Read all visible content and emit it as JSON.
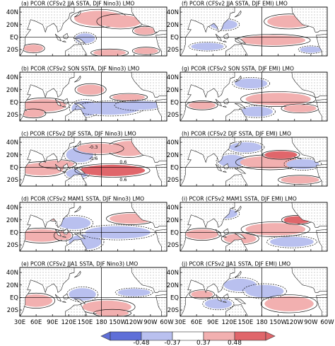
{
  "chart_data": [
    {
      "type": "heatmap",
      "id": "a",
      "title": "(a) PCOR (CFSv2 JJA SSTA, DJF Nino3) LMO"
    },
    {
      "type": "heatmap",
      "id": "b",
      "title": "(b) PCOR (CFSv2 SON SSTA, DJF Nino3) LMO"
    },
    {
      "type": "heatmap",
      "id": "c",
      "title": "(c) PCOR (CFSv2 DJF SSTA, DJF Nino3) LMO",
      "annotations": [
        "-0.3",
        "-0.6",
        "0.6",
        "0.6"
      ]
    },
    {
      "type": "heatmap",
      "id": "d",
      "title": "(d) PCOR (CFSv2 MAM1 SSTA, DJF Nino3) LMO"
    },
    {
      "type": "heatmap",
      "id": "e",
      "title": "(e) PCOR (CFSv2 JJA1 SSTA, DJF Nino3) LMO"
    },
    {
      "type": "heatmap",
      "id": "f",
      "title": "(f) PCOR (CFSv2 JJA SSTA, DJF EMI) LMO"
    },
    {
      "type": "heatmap",
      "id": "g",
      "title": "(g) PCOR (CFSv2 SON SSTA, DJF EMI) LMO"
    },
    {
      "type": "heatmap",
      "id": "h",
      "title": "(h) PCOR (CFSv2 DJF SSTA, DJF EMI) LMO"
    },
    {
      "type": "heatmap",
      "id": "i",
      "title": "(i) PCOR (CFSv2 MAM1 SSTA, DJF EMI) LMO"
    },
    {
      "type": "heatmap",
      "id": "j",
      "title": "(j) PCOR (CFSv2 JJA1 SSTA, DJF EMI) LMO"
    }
  ],
  "axes": {
    "y_ticks": [
      "40N",
      "20N",
      "EQ",
      "20S"
    ],
    "y_values": [
      40,
      20,
      0,
      -20
    ],
    "x_ticks": [
      "30E",
      "60E",
      "90E",
      "120E",
      "150E",
      "180",
      "150W",
      "120W",
      "90W",
      "60W"
    ],
    "x_values": [
      30,
      60,
      90,
      120,
      150,
      180,
      210,
      240,
      270,
      300
    ],
    "xlim": [
      30,
      300
    ],
    "ylim": [
      -30,
      48
    ]
  },
  "colorbar": {
    "labels": [
      "-0.48",
      "-0.37",
      "0.37",
      "0.48"
    ],
    "levels": [
      -0.48,
      -0.37,
      0.37,
      0.48
    ],
    "colors": {
      "strong_neg": "#5f6fd8",
      "neg": "#b9c0ef",
      "pos": "#f2b0b0",
      "strong_pos": "#e0666b"
    }
  }
}
